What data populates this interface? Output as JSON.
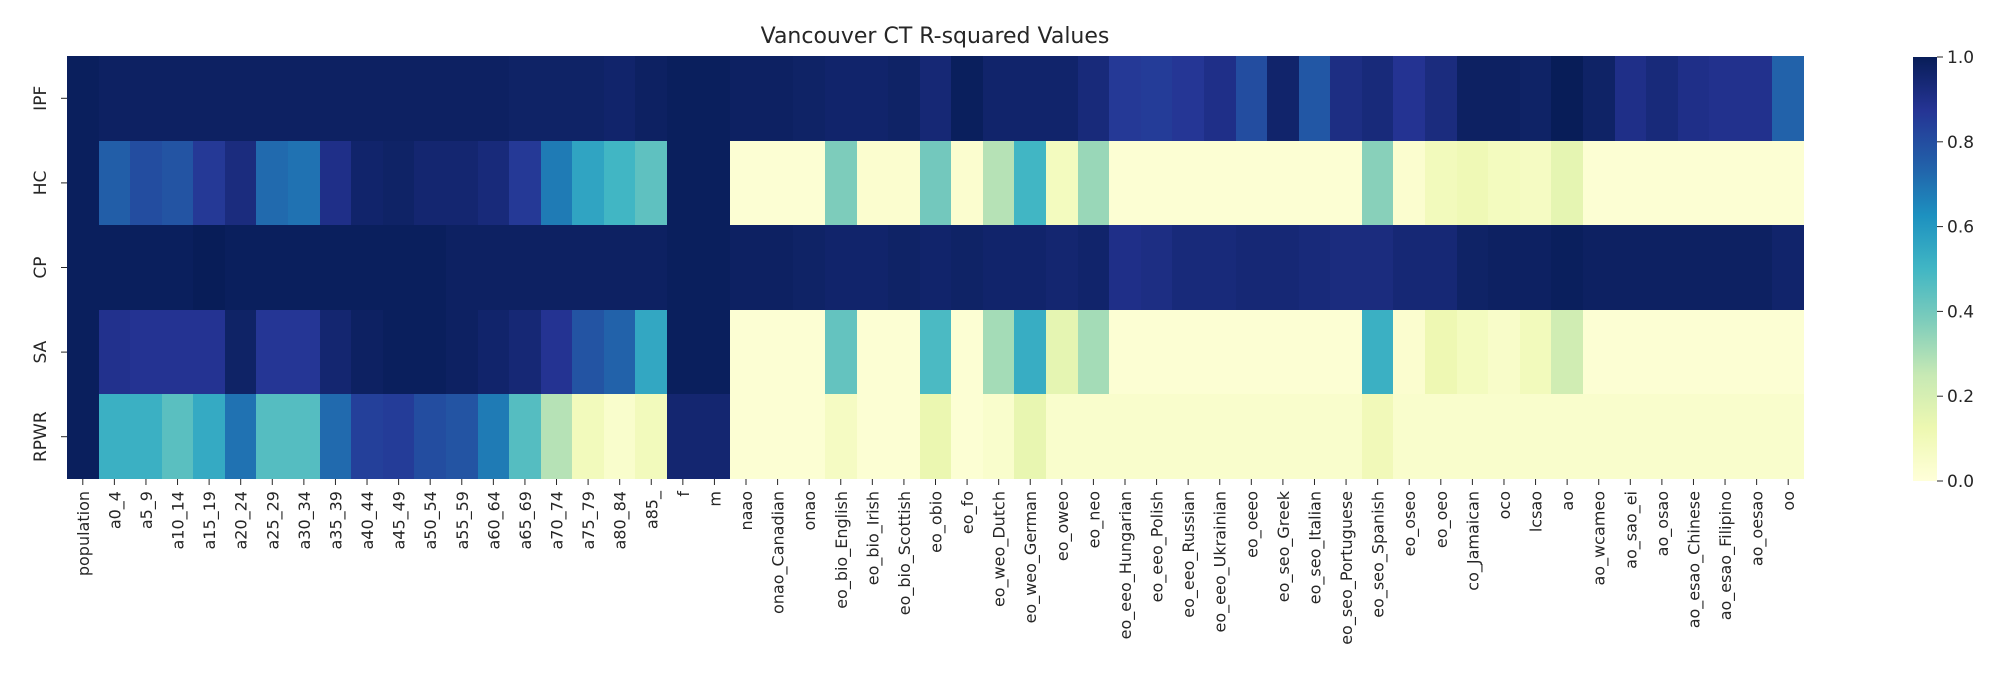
{
  "chart_data": {
    "type": "heatmap",
    "title": "Vancouver CT R-squared Values",
    "rows": [
      "IPF",
      "HC",
      "CP",
      "SA",
      "RPWR"
    ],
    "columns": [
      "population",
      "a0_4",
      "a5_9",
      "a10_14",
      "a15_19",
      "a20_24",
      "a25_29",
      "a30_34",
      "a35_39",
      "a40_44",
      "a45_49",
      "a50_54",
      "a55_59",
      "a60_64",
      "a65_69",
      "a70_74",
      "a75_79",
      "a80_84",
      "a85_",
      "f",
      "m",
      "naao",
      "onao_Canadian",
      "onao",
      "eo_bio_English",
      "eo_bio_Irish",
      "eo_bio_Scottish",
      "eo_obio",
      "eo_fo",
      "eo_weo_Dutch",
      "eo_weo_German",
      "eo_oweo",
      "eo_neo",
      "eo_eeo_Hungarian",
      "eo_eeo_Polish",
      "eo_eeo_Russian",
      "eo_eeo_Ukrainian",
      "eo_oeeo",
      "eo_seo_Greek",
      "eo_seo_Italian",
      "eo_seo_Portuguese",
      "eo_seo_Spanish",
      "eo_oseo",
      "eo_oeo",
      "co_Jamaican",
      "oco",
      "lcsao",
      "ao",
      "ao_wcameo",
      "ao_sao_ei",
      "ao_osao",
      "ao_esao_Chinese",
      "ao_esao_Filipino",
      "ao_oesao",
      "oo"
    ],
    "values": [
      [
        0.99,
        0.98,
        0.98,
        0.98,
        0.98,
        0.98,
        0.98,
        0.98,
        0.98,
        0.98,
        0.98,
        0.98,
        0.98,
        0.98,
        0.97,
        0.97,
        0.97,
        0.96,
        0.98,
        0.99,
        0.99,
        0.98,
        0.98,
        0.97,
        0.96,
        0.96,
        0.97,
        0.94,
        0.99,
        0.96,
        0.96,
        0.96,
        0.93,
        0.86,
        0.85,
        0.87,
        0.9,
        0.8,
        0.96,
        0.77,
        0.91,
        0.93,
        0.88,
        0.92,
        0.98,
        0.98,
        0.97,
        1.0,
        0.97,
        0.9,
        0.93,
        0.9,
        0.89,
        0.89,
        0.74
      ],
      [
        0.99,
        0.75,
        0.8,
        0.78,
        0.86,
        0.92,
        0.72,
        0.7,
        0.9,
        0.96,
        0.97,
        0.95,
        0.95,
        0.93,
        0.86,
        0.68,
        0.56,
        0.5,
        0.44,
        0.99,
        0.99,
        0.02,
        0.02,
        0.02,
        0.38,
        0.03,
        0.03,
        0.4,
        0.03,
        0.28,
        0.5,
        0.08,
        0.33,
        0.02,
        0.02,
        0.02,
        0.02,
        0.02,
        0.02,
        0.02,
        0.02,
        0.36,
        0.03,
        0.09,
        0.11,
        0.08,
        0.07,
        0.15,
        0.02,
        0.02,
        0.02,
        0.02,
        0.02,
        0.02,
        0.02
      ],
      [
        0.99,
        0.99,
        0.99,
        0.99,
        1.0,
        0.99,
        0.99,
        0.99,
        0.99,
        0.99,
        0.99,
        0.99,
        0.98,
        0.98,
        0.98,
        0.98,
        0.98,
        0.98,
        0.98,
        0.99,
        0.99,
        0.98,
        0.98,
        0.97,
        0.96,
        0.96,
        0.97,
        0.96,
        0.97,
        0.96,
        0.96,
        0.95,
        0.96,
        0.9,
        0.91,
        0.93,
        0.93,
        0.94,
        0.94,
        0.93,
        0.92,
        0.92,
        0.94,
        0.94,
        0.97,
        0.98,
        0.98,
        0.99,
        0.98,
        0.98,
        0.98,
        0.98,
        0.98,
        0.98,
        0.96
      ],
      [
        0.99,
        0.89,
        0.88,
        0.88,
        0.88,
        0.97,
        0.87,
        0.87,
        0.95,
        0.98,
        0.99,
        0.99,
        0.98,
        0.96,
        0.94,
        0.88,
        0.78,
        0.74,
        0.55,
        0.99,
        0.99,
        0.02,
        0.02,
        0.02,
        0.43,
        0.02,
        0.02,
        0.48,
        0.02,
        0.31,
        0.53,
        0.15,
        0.31,
        0.02,
        0.02,
        0.02,
        0.02,
        0.02,
        0.02,
        0.02,
        0.02,
        0.52,
        0.03,
        0.12,
        0.08,
        0.05,
        0.09,
        0.22,
        0.02,
        0.02,
        0.02,
        0.02,
        0.02,
        0.02,
        0.02
      ],
      [
        0.99,
        0.52,
        0.52,
        0.45,
        0.54,
        0.7,
        0.46,
        0.46,
        0.72,
        0.84,
        0.85,
        0.8,
        0.78,
        0.68,
        0.46,
        0.28,
        0.09,
        0.04,
        0.09,
        0.95,
        0.95,
        0.02,
        0.02,
        0.02,
        0.07,
        0.02,
        0.02,
        0.13,
        0.02,
        0.04,
        0.14,
        0.04,
        0.04,
        0.04,
        0.04,
        0.04,
        0.04,
        0.04,
        0.04,
        0.04,
        0.04,
        0.1,
        0.04,
        0.04,
        0.04,
        0.04,
        0.04,
        0.04,
        0.04,
        0.04,
        0.04,
        0.04,
        0.04,
        0.04,
        0.04
      ]
    ],
    "vmin": 0.0,
    "vmax": 1.0,
    "colormap": "YlGnBu",
    "colorbar_ticks": [
      "0.0",
      "0.2",
      "0.4",
      "0.6",
      "0.8",
      "1.0"
    ]
  }
}
